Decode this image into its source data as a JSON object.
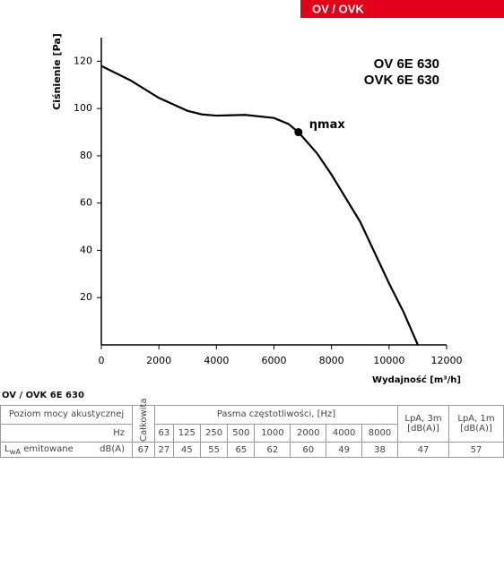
{
  "header": {
    "badge": "OV / OVK"
  },
  "chart_data": {
    "type": "line",
    "annotations": [
      "OV 6E 630",
      "OVK 6E 630"
    ],
    "y_label": "Ciśnienie [Pa]",
    "x_label": "Wydajność [m³/h]",
    "x": [
      0,
      1000,
      2000,
      3000,
      3500,
      4000,
      5000,
      6000,
      6500,
      6850,
      7500,
      8000,
      9000,
      10000,
      10500,
      11000
    ],
    "series": [
      {
        "color": "#000000",
        "values": [
          118,
          112,
          104.5,
          99,
          97.5,
          97,
          97.3,
          96,
          93.5,
          90,
          81,
          72,
          52,
          26,
          14,
          0
        ]
      }
    ],
    "marker": {
      "x": 6850,
      "y": 90,
      "label": "ηmax"
    },
    "xlim": [
      0,
      12000
    ],
    "xticks": [
      0,
      2000,
      4000,
      6000,
      8000,
      10000,
      12000
    ],
    "ylim": [
      0,
      130
    ],
    "yticks": [
      20,
      40,
      60,
      80,
      100,
      120
    ],
    "grid": false
  },
  "table": {
    "title": "OV / OVK 6E 630",
    "col_label": "Poziom mocy akustycznej",
    "col_total": "Całkowita",
    "col_bands": "Pasma częstotliwości, [Hz]",
    "col_lpa3": "LpA, 3m [dB(A)]",
    "col_lpa1": "LpA, 1m [dB(A)]",
    "hz": "Hz",
    "frequencies": [
      63,
      125,
      250,
      500,
      1000,
      2000,
      4000,
      8000
    ],
    "row": {
      "label_main": "L",
      "label_sub": "wA",
      "label_rest": " emitowane",
      "unit": "dB(A)",
      "total": 67,
      "bands": [
        27,
        45,
        55,
        65,
        62,
        60,
        49,
        38
      ],
      "lpa3": 47,
      "lpa1": 57
    }
  }
}
